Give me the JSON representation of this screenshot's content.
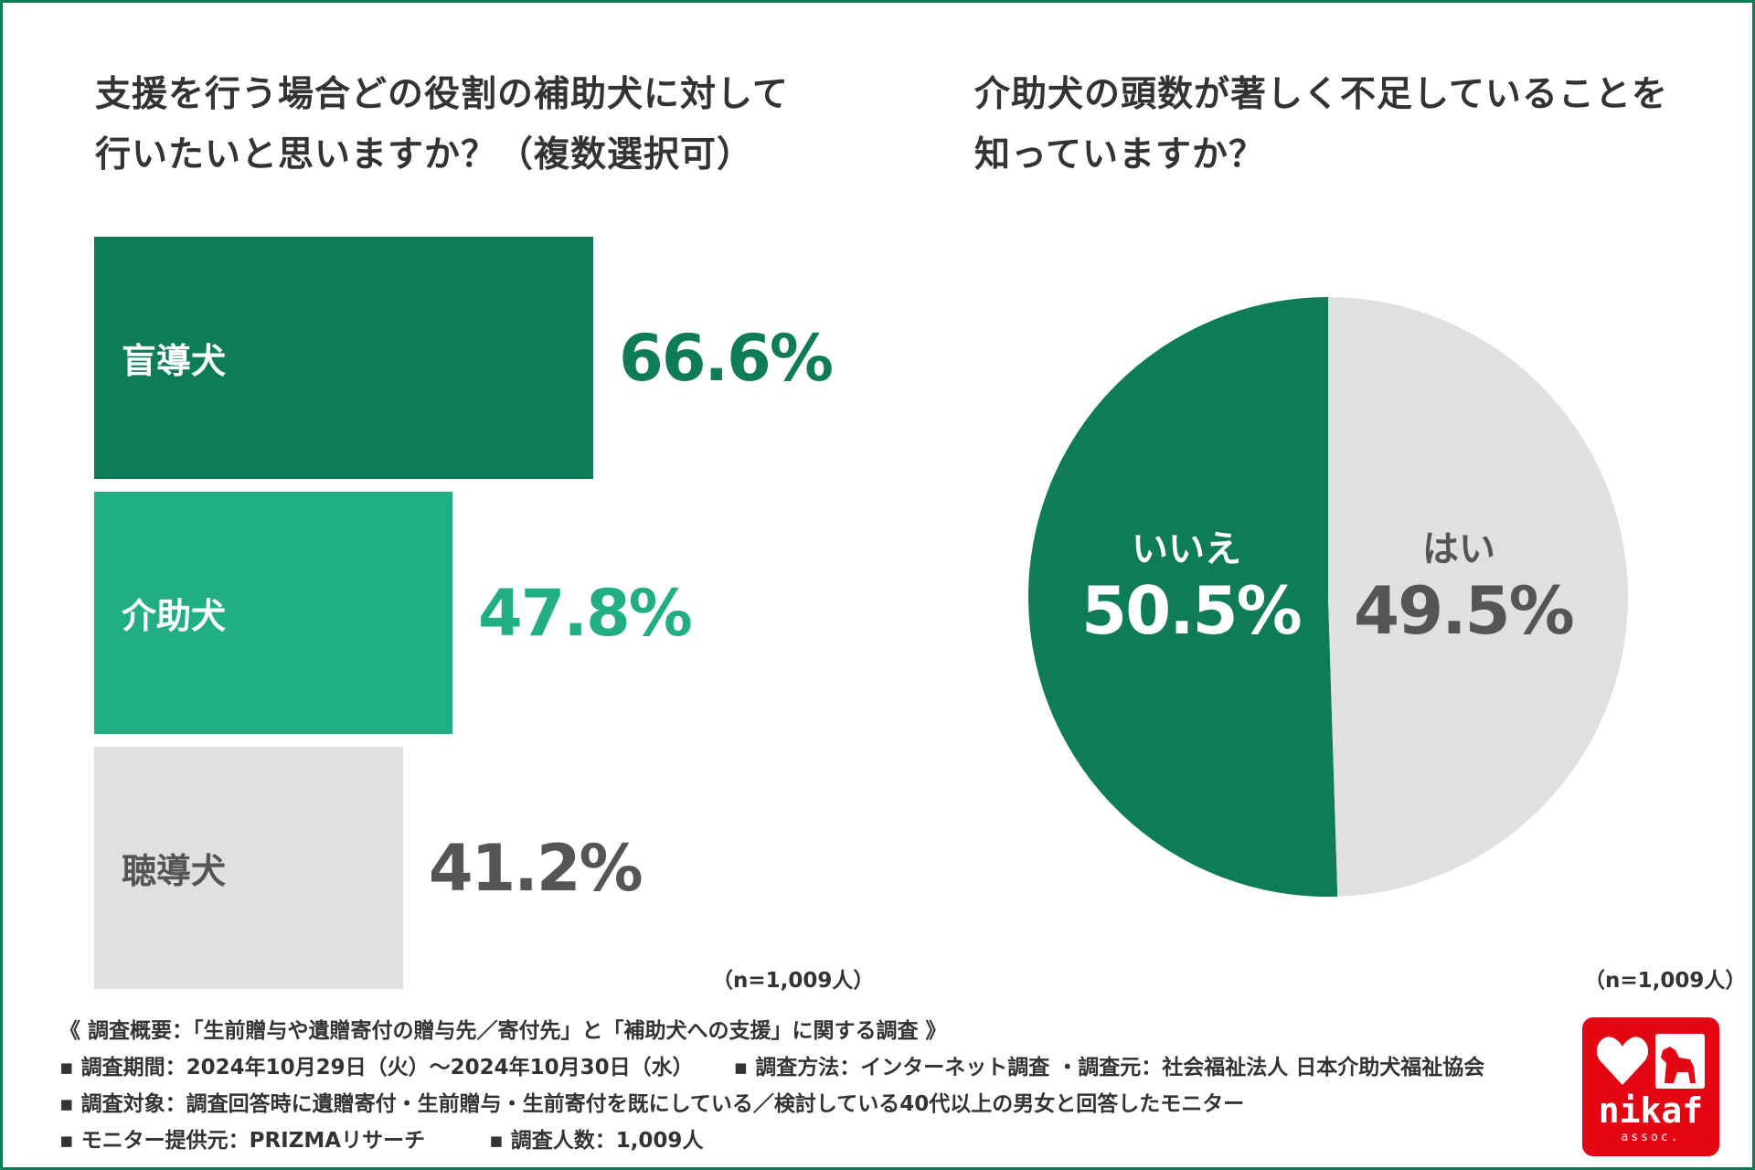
{
  "bar_chart": {
    "title_lines": [
      "支援を行う場合どの役割の補助犬に対して",
      "行いたいと思いますか？（複数選択可）"
    ],
    "n_note": "（n=1,009人）"
  },
  "pie_chart": {
    "title_lines": [
      "介助犬の頭数が著しく不足していることを",
      "知っていますか？"
    ],
    "n_note": "（n=1,009人）"
  },
  "chart_data": [
    {
      "type": "bar",
      "orientation": "horizontal",
      "title": "支援を行う場合どの役割の補助犬に対して行いたいと思いますか？（複数選択可）",
      "categories": [
        "盲導犬",
        "介助犬",
        "聴導犬"
      ],
      "values": [
        66.6,
        47.8,
        41.2
      ],
      "value_labels": [
        "66.6%",
        "47.8%",
        "41.2%"
      ],
      "colors": [
        "#0e7c59",
        "#22ae85",
        "#e0e0e0"
      ],
      "label_colors": [
        "#ffffff",
        "#ffffff",
        "#555555"
      ],
      "value_colors": [
        "#0e7c59",
        "#22ae85",
        "#555555"
      ],
      "unit": "%",
      "note": "（n=1,009人）"
    },
    {
      "type": "pie",
      "title": "介助犬の頭数が著しく不足していることを知っていますか？",
      "categories": [
        "いいえ",
        "はい"
      ],
      "values": [
        50.5,
        49.5
      ],
      "value_labels": [
        "50.5%",
        "49.5%"
      ],
      "colors": [
        "#0e7c59",
        "#e0e0e0"
      ],
      "text_colors": [
        "#ffffff",
        "#555555"
      ],
      "unit": "%",
      "note": "（n=1,009人）"
    }
  ],
  "footer": {
    "line1": "《 調査概要：「生前贈与や遺贈寄付の贈与先／寄付先」と「補助犬への支援」に関する調査 》",
    "line2a": "▪ 調査期間：2024年10月29日（火）～2024年10月30日（水）",
    "line2b": "▪ 調査方法：インターネット調査 ・調査元：社会福祉法人 日本介助犬福祉協会",
    "line3": "▪ 調査対象：調査回答時に遺贈寄付・生前贈与・生前寄付を既にしている／検討している40代以上の男女と回答したモニター",
    "line4a": "▪ モニター提供元：PRIZMAリサーチ",
    "line4b": "▪ 調査人数：1,009人"
  },
  "logo": {
    "name": "nikaf",
    "sub": "assoc.",
    "color": "#e30613"
  }
}
